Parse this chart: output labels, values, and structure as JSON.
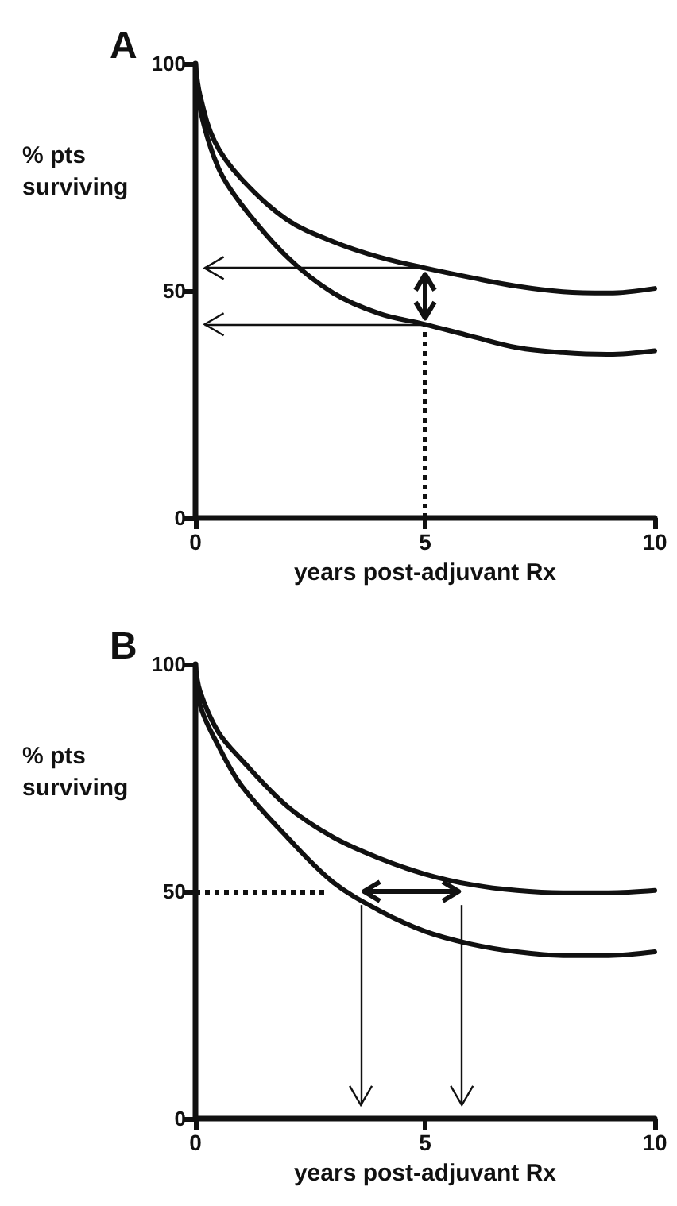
{
  "chart_data": [
    {
      "type": "line",
      "title": "A",
      "xlabel": "years post-adjuvant Rx",
      "ylabel": "% pts surviving",
      "marker": "none",
      "line_style": "solid",
      "xlim": [
        0,
        10
      ],
      "xticks": [
        0,
        5,
        10
      ],
      "ylim": [
        0,
        100
      ],
      "yticks": [
        0,
        50,
        100
      ],
      "series": [
        {
          "color": "#111111",
          "x": [
            0,
            0.1,
            0.42,
            1,
            2,
            3,
            4,
            5,
            6,
            7,
            8,
            9,
            10
          ],
          "values": [
            100,
            93,
            82.8,
            74.6,
            65.6,
            60.8,
            57.4,
            55,
            52.9,
            51,
            49.8,
            49.5,
            50.5
          ]
        },
        {
          "color": "#111111",
          "x": [
            0,
            0.1,
            0.5,
            1,
            2,
            3,
            4,
            5,
            6,
            7,
            8,
            9,
            10
          ],
          "values": [
            100,
            90,
            77,
            69,
            57.4,
            49.5,
            45,
            42.6,
            40,
            37.5,
            36.4,
            36,
            36.8
          ]
        }
      ],
      "ref_lines": [
        {
          "axis": "x",
          "value": 5,
          "line_style": "dotted",
          "color": "#111111"
        },
        {
          "axis": "y",
          "value": 55,
          "line_style": "solid",
          "color": "#111111"
        },
        {
          "axis": "y",
          "value": 42.6,
          "line_style": "solid",
          "color": "#111111"
        }
      ]
    },
    {
      "type": "line",
      "title": "B",
      "xlabel": "years post-adjuvant Rx",
      "ylabel": "% pts surviving",
      "marker": "none",
      "line_style": "solid",
      "xlim": [
        0,
        10
      ],
      "xticks": [
        0,
        5,
        10
      ],
      "ylim": [
        0,
        100
      ],
      "yticks": [
        0,
        50,
        100
      ],
      "series": [
        {
          "color": "#111111",
          "x": [
            0,
            0.1,
            0.5,
            1,
            2,
            3,
            4,
            5,
            6,
            7,
            8,
            9,
            10
          ],
          "values": [
            100,
            94,
            85,
            79,
            68.7,
            61.9,
            57.3,
            53.8,
            51.5,
            50.2,
            49.7,
            49.7,
            50.2
          ]
        },
        {
          "color": "#111111",
          "x": [
            0,
            0.1,
            0.5,
            1,
            2,
            3,
            4,
            5,
            6,
            7,
            8,
            9,
            10
          ],
          "values": [
            100,
            91,
            82,
            73.3,
            61.9,
            52,
            45.8,
            41.2,
            38.4,
            36.7,
            35.9,
            35.9,
            36.7
          ]
        }
      ],
      "ref_lines": [
        {
          "axis": "y",
          "value": 50,
          "line_style": "dotted",
          "color": "#111111"
        },
        {
          "axis": "x",
          "value": 3.6,
          "line_style": "solid",
          "color": "#111111"
        },
        {
          "axis": "x",
          "value": 5.8,
          "line_style": "solid",
          "color": "#111111"
        }
      ]
    }
  ]
}
